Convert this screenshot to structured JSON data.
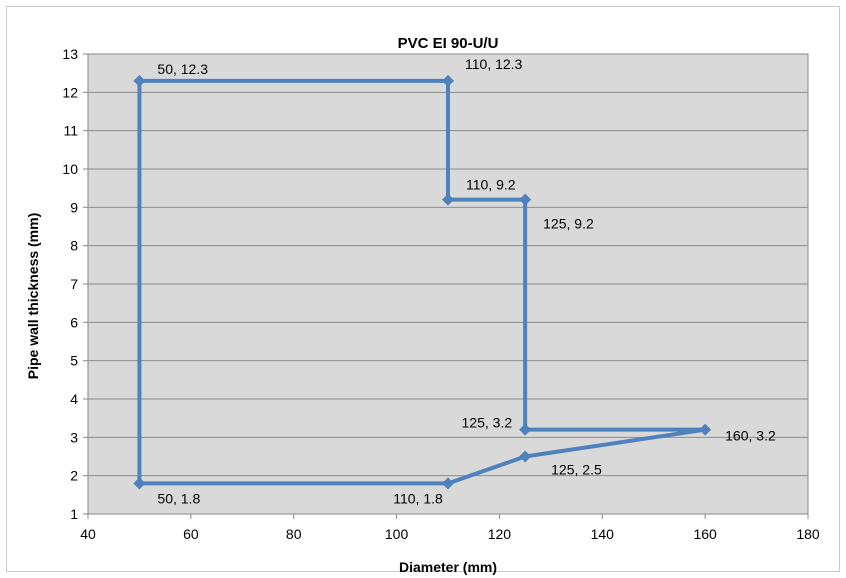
{
  "chart_data": {
    "type": "scatter",
    "title": "PVC EI 90-U/U",
    "xlabel": "Diameter (mm)",
    "ylabel": "Pipe wall thickness  (mm)",
    "xlim": [
      40,
      180
    ],
    "ylim": [
      1,
      13
    ],
    "xticks": [
      40,
      60,
      80,
      100,
      120,
      140,
      160,
      180
    ],
    "yticks": [
      1,
      2,
      3,
      4,
      5,
      6,
      7,
      8,
      9,
      10,
      11,
      12,
      13
    ],
    "grid": "horizontal",
    "plot_background": "#d9d9d9",
    "series": [
      {
        "color": "#4f81bd",
        "marker": "diamond",
        "lines": "straight",
        "points": [
          {
            "x": 50,
            "y": 1.8,
            "label": "50, 1.8"
          },
          {
            "x": 50,
            "y": 12.3,
            "label": "50, 12.3"
          },
          {
            "x": 110,
            "y": 12.3,
            "label": "110, 12.3"
          },
          {
            "x": 110,
            "y": 9.2,
            "label": "110, 9.2"
          },
          {
            "x": 125,
            "y": 9.2,
            "label": "125, 9.2"
          },
          {
            "x": 125,
            "y": 3.2,
            "label": "125, 3.2"
          },
          {
            "x": 160,
            "y": 3.2,
            "label": "160, 3.2"
          },
          {
            "x": 125,
            "y": 2.5,
            "label": "125, 2.5"
          },
          {
            "x": 110,
            "y": 1.8,
            "label": "110, 1.8"
          },
          {
            "x": 50,
            "y": 1.8
          }
        ]
      }
    ]
  }
}
